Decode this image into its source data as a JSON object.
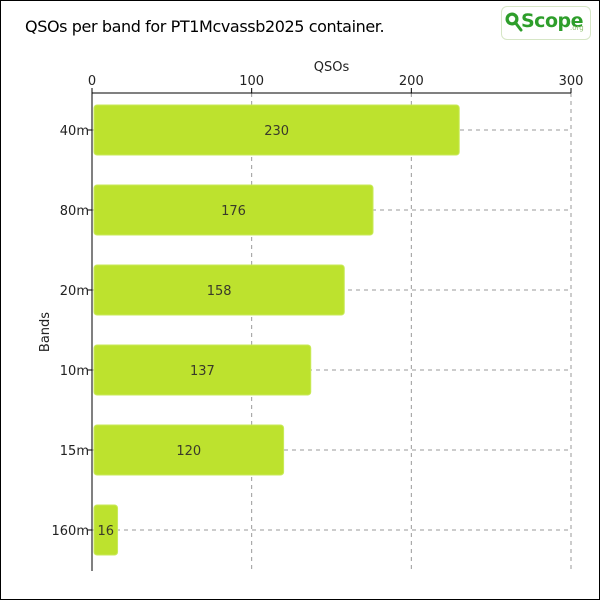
{
  "title": "QSOs per band for PT1Mcvassb2025 container.",
  "logo": {
    "text": "Scope",
    "sub": ".org",
    "icon": "magnifier-q-icon"
  },
  "colors": {
    "bar": "#bde22e",
    "bar_stroke": "#c9ea5a",
    "grid": "#9a9a9a",
    "axis": "#000000"
  },
  "chart_data": {
    "type": "bar",
    "orientation": "horizontal",
    "title": "QSOs per band for PT1Mcvassb2025 container.",
    "xlabel": "QSOs",
    "ylabel": "Bands",
    "xlim": [
      0,
      300
    ],
    "xticks": [
      0,
      100,
      200,
      300
    ],
    "x_axis_position": "top",
    "grid": true,
    "categories": [
      "40m",
      "80m",
      "20m",
      "10m",
      "15m",
      "160m"
    ],
    "values": [
      230,
      176,
      158,
      137,
      120,
      16
    ],
    "data_labels": [
      "230",
      "176",
      "158",
      "137",
      "120",
      "16"
    ]
  }
}
